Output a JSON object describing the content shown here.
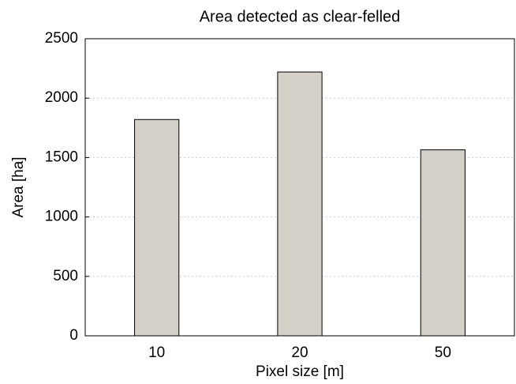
{
  "chart_data": {
    "type": "bar",
    "title": "Area detected as clear-felled",
    "x_label": "Pixel size   [m]",
    "y_label": "Area  [ha]",
    "categories": [
      "10",
      "20",
      "50"
    ],
    "values": [
      1820,
      2220,
      1565
    ],
    "color": "#d4d0c8",
    "ylim": [
      0,
      2500
    ],
    "yticks": [
      0,
      500,
      1000,
      1500,
      2000,
      2500
    ],
    "grid": true
  }
}
